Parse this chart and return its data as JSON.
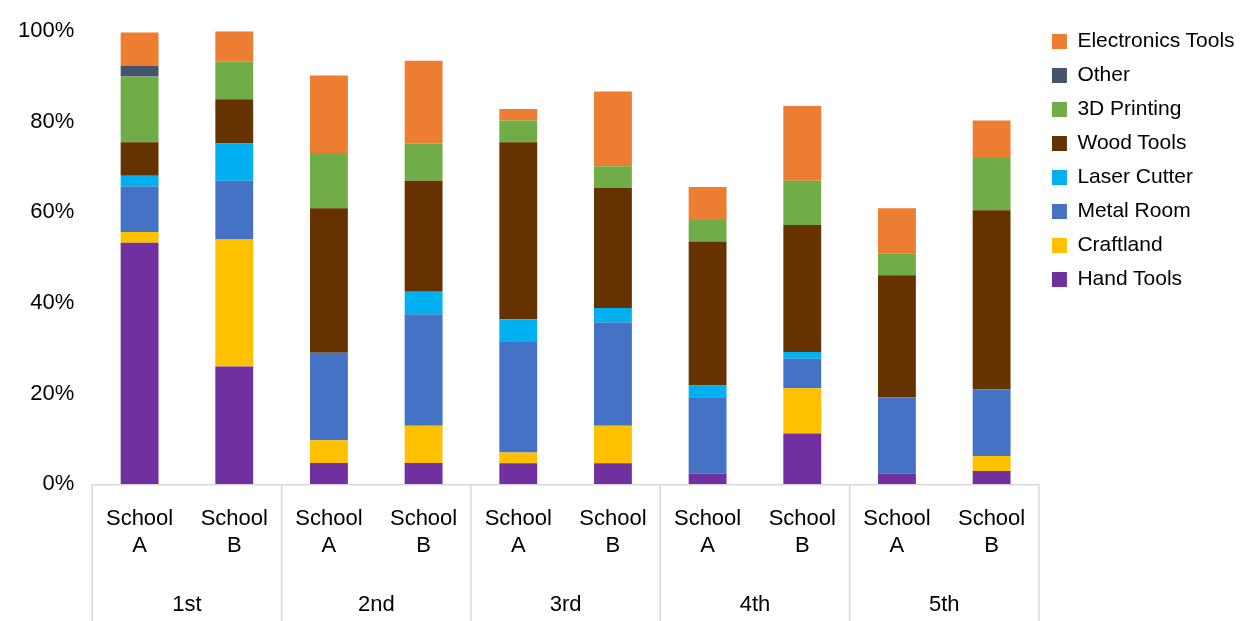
{
  "chart_data": {
    "type": "bar",
    "stacked": true,
    "categories": [
      "School A",
      "School B",
      "School A",
      "School B",
      "School A",
      "School B",
      "School A",
      "School B",
      "School A",
      "School B"
    ],
    "annotations": [
      "1st",
      "2nd",
      "3rd",
      "4th",
      "5th"
    ],
    "series": [
      {
        "name": "Hand Tools",
        "color": "#7030a0",
        "values": [
          53.3,
          26,
          4.7,
          4.7,
          4.6,
          4.6,
          2.3,
          11.2,
          2.3,
          2.9
        ]
      },
      {
        "name": "Craftland",
        "color": "#ffc000",
        "values": [
          2.4,
          28,
          5,
          8.2,
          2.4,
          8.3,
          0,
          10,
          0,
          3.3
        ]
      },
      {
        "name": "Metal Room",
        "color": "#4472c4",
        "values": [
          10,
          13,
          19.3,
          24.6,
          24.4,
          22.8,
          16.9,
          6.5,
          16.9,
          14.7
        ]
      },
      {
        "name": "Laser Cutter",
        "color": "#00b0f0",
        "values": [
          2.4,
          8.2,
          0,
          5,
          5,
          3.2,
          2.6,
          1.5,
          0,
          0
        ]
      },
      {
        "name": "Wood Tools",
        "color": "#663300",
        "values": [
          7.4,
          9.8,
          31.9,
          24.5,
          39.1,
          26.5,
          31.8,
          28,
          26.9,
          39.6
        ]
      },
      {
        "name": "3D Printing",
        "color": "#70ad47",
        "values": [
          14.5,
          8.3,
          12.2,
          8.2,
          4.8,
          4.8,
          4.7,
          9.8,
          4.9,
          11.5
        ]
      },
      {
        "name": "Other",
        "color": "#44546a",
        "values": [
          2.4,
          0,
          0,
          0,
          0,
          0,
          0,
          0,
          0,
          0
        ]
      },
      {
        "name": "Electronics Tools",
        "color": "#ed7d31",
        "values": [
          7.3,
          6.7,
          17.1,
          18.3,
          2.5,
          16.5,
          7.3,
          16.5,
          9.9,
          8.3
        ]
      }
    ],
    "ylim": [
      0,
      100
    ],
    "yticks": [
      {
        "value": 0,
        "label": "0%"
      },
      {
        "value": 20,
        "label": "20%"
      },
      {
        "value": 40,
        "label": "40%"
      },
      {
        "value": 60,
        "label": "60%"
      },
      {
        "value": 80,
        "label": "80%"
      },
      {
        "value": 100,
        "label": "100%"
      }
    ],
    "legend": "right"
  }
}
